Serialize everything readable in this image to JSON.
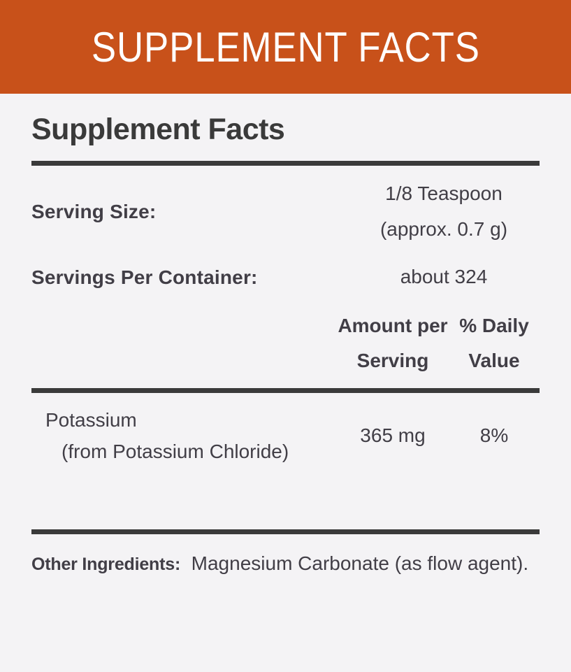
{
  "banner": {
    "title": "SUPPLEMENT FACTS"
  },
  "heading": "Supplement Facts",
  "serving": {
    "size_label": "Serving Size:",
    "size_value_line1": "1/8 Teaspoon",
    "size_value_line2": "(approx. 0.7 g)",
    "per_container_label": "Servings Per Container:",
    "per_container_value": "about 324"
  },
  "columns": {
    "amount_header": "Amount per Serving",
    "daily_value_header": "% Daily Value"
  },
  "rows": [
    {
      "name": "Potassium",
      "source": "(from Potassium Chloride)",
      "amount": "365 mg",
      "daily_value": "8%"
    }
  ],
  "other_ingredients": {
    "label": "Other Ingredients:",
    "text": "Magnesium Carbonate (as flow agent)."
  },
  "colors": {
    "banner_bg": "#c8511a",
    "banner_text": "#ffffff",
    "body_bg": "#f4f3f5",
    "heading_text": "#3a3a3a",
    "body_text": "#413e46"
  }
}
